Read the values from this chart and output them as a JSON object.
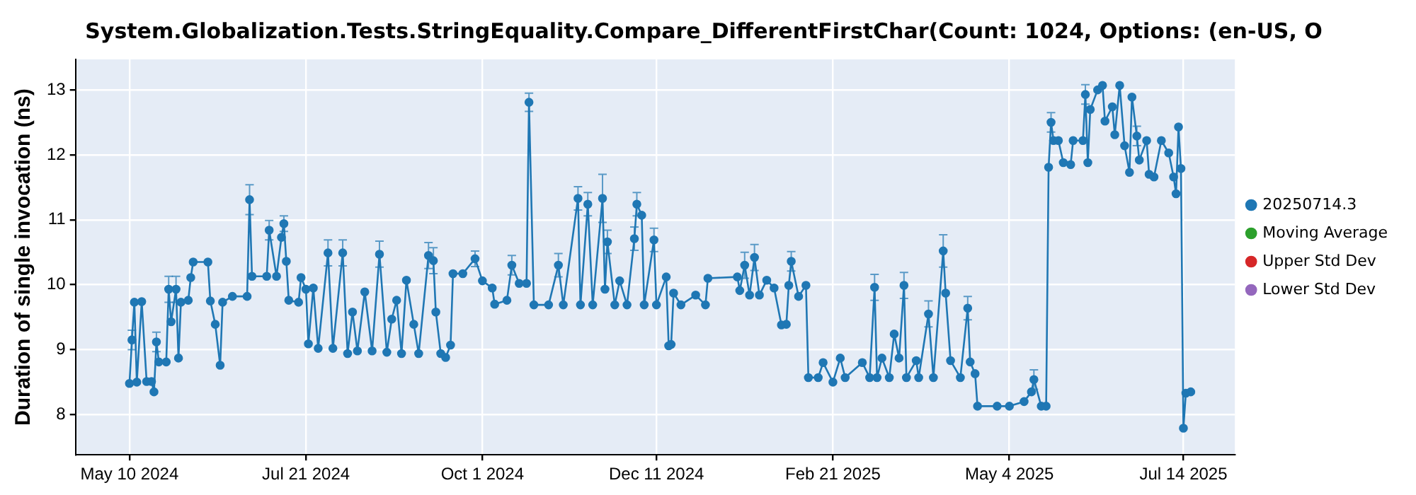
{
  "chart_data": {
    "type": "line",
    "title": "System.Globalization.Tests.StringEquality.Compare_DifferentFirstChar(Count: 1024, Options: (en-US, O",
    "ylabel": "Duration of single invocation (ns)",
    "x": [
      "2024-05-10",
      "2024-05-11",
      "2024-05-12",
      "2024-05-13",
      "2024-05-15",
      "2024-05-17",
      "2024-05-19",
      "2024-05-20",
      "2024-05-21",
      "2024-05-22",
      "2024-05-25",
      "2024-05-26",
      "2024-05-27",
      "2024-05-29",
      "2024-05-30",
      "2024-05-31",
      "2024-06-03",
      "2024-06-04",
      "2024-06-05",
      "2024-06-11",
      "2024-06-12",
      "2024-06-14",
      "2024-06-16",
      "2024-06-17",
      "2024-06-21",
      "2024-06-27",
      "2024-06-28",
      "2024-06-29",
      "2024-07-05",
      "2024-07-06",
      "2024-07-09",
      "2024-07-11",
      "2024-07-12",
      "2024-07-13",
      "2024-07-14",
      "2024-07-18",
      "2024-07-19",
      "2024-07-21",
      "2024-07-22",
      "2024-07-24",
      "2024-07-26",
      "2024-07-30",
      "2024-08-01",
      "2024-08-05",
      "2024-08-07",
      "2024-08-09",
      "2024-08-11",
      "2024-08-14",
      "2024-08-17",
      "2024-08-20",
      "2024-08-23",
      "2024-08-25",
      "2024-08-27",
      "2024-08-29",
      "2024-08-31",
      "2024-09-03",
      "2024-09-05",
      "2024-09-09",
      "2024-09-11",
      "2024-09-12",
      "2024-09-14",
      "2024-09-16",
      "2024-09-18",
      "2024-09-19",
      "2024-09-23",
      "2024-09-28",
      "2024-10-01",
      "2024-10-05",
      "2024-10-06",
      "2024-10-11",
      "2024-10-13",
      "2024-10-16",
      "2024-10-19",
      "2024-10-20",
      "2024-10-22",
      "2024-10-28",
      "2024-11-01",
      "2024-11-03",
      "2024-11-09",
      "2024-11-10",
      "2024-11-13",
      "2024-11-15",
      "2024-11-19",
      "2024-11-20",
      "2024-11-21",
      "2024-11-24",
      "2024-11-26",
      "2024-11-29",
      "2024-12-02",
      "2024-12-03",
      "2024-12-05",
      "2024-12-06",
      "2024-12-10",
      "2024-12-11",
      "2024-12-15",
      "2024-12-16",
      "2024-12-17",
      "2024-12-18",
      "2024-12-21",
      "2024-12-27",
      "2024-12-31",
      "2025-01-01",
      "2025-01-13",
      "2025-01-14",
      "2025-01-16",
      "2025-01-18",
      "2025-01-20",
      "2025-01-22",
      "2025-01-25",
      "2025-01-28",
      "2025-01-31",
      "2025-02-02",
      "2025-02-03",
      "2025-02-04",
      "2025-02-07",
      "2025-02-10",
      "2025-02-11",
      "2025-02-15",
      "2025-02-17",
      "2025-02-21",
      "2025-02-24",
      "2025-02-26",
      "2025-03-05",
      "2025-03-08",
      "2025-03-10",
      "2025-03-11",
      "2025-03-13",
      "2025-03-16",
      "2025-03-18",
      "2025-03-20",
      "2025-03-22",
      "2025-03-23",
      "2025-03-27",
      "2025-03-28",
      "2025-04-01",
      "2025-04-03",
      "2025-04-07",
      "2025-04-08",
      "2025-04-10",
      "2025-04-14",
      "2025-04-17",
      "2025-04-18",
      "2025-04-20",
      "2025-04-21",
      "2025-04-29",
      "2025-05-04",
      "2025-05-10",
      "2025-05-13",
      "2025-05-14",
      "2025-05-17",
      "2025-05-19",
      "2025-05-20",
      "2025-05-21",
      "2025-05-22",
      "2025-05-24",
      "2025-05-26",
      "2025-05-29",
      "2025-05-30",
      "2025-06-03",
      "2025-06-04",
      "2025-06-05",
      "2025-06-06",
      "2025-06-09",
      "2025-06-11",
      "2025-06-12",
      "2025-06-15",
      "2025-06-16",
      "2025-06-18",
      "2025-06-20",
      "2025-06-22",
      "2025-06-23",
      "2025-06-25",
      "2025-06-26",
      "2025-06-29",
      "2025-06-30",
      "2025-07-02",
      "2025-07-05",
      "2025-07-08",
      "2025-07-10",
      "2025-07-11",
      "2025-07-12",
      "2025-07-13",
      "2025-07-14",
      "2025-07-15",
      "2025-07-17"
    ],
    "series": [
      {
        "name": "20250714.3",
        "color": "#1f77b4",
        "values": [
          8.48,
          9.15,
          9.73,
          8.5,
          9.74,
          8.51,
          8.51,
          8.35,
          9.12,
          8.81,
          8.81,
          9.93,
          9.43,
          9.93,
          8.87,
          9.73,
          9.76,
          10.11,
          10.35,
          10.35,
          9.75,
          9.39,
          8.76,
          9.73,
          9.82,
          9.82,
          11.31,
          10.13,
          10.13,
          10.84,
          10.13,
          10.73,
          10.94,
          10.36,
          9.76,
          9.73,
          10.11,
          9.93,
          9.09,
          9.95,
          9.02,
          10.49,
          9.02,
          10.49,
          8.94,
          9.58,
          8.98,
          9.89,
          8.98,
          10.47,
          8.96,
          9.47,
          9.76,
          8.94,
          10.07,
          9.39,
          8.94,
          10.45,
          10.37,
          9.58,
          8.94,
          8.88,
          9.07,
          10.17,
          10.17,
          10.4,
          10.06,
          9.95,
          9.7,
          9.76,
          10.3,
          10.02,
          10.02,
          12.81,
          9.69,
          9.69,
          10.3,
          9.69,
          11.33,
          9.69,
          11.24,
          9.69,
          11.33,
          9.93,
          10.66,
          9.69,
          10.06,
          9.69,
          10.71,
          11.24,
          11.07,
          9.69,
          10.69,
          9.69,
          10.12,
          9.06,
          9.08,
          9.87,
          9.69,
          9.84,
          9.69,
          10.1,
          10.12,
          9.91,
          10.3,
          9.84,
          10.42,
          9.84,
          10.07,
          9.95,
          9.38,
          9.39,
          9.99,
          10.36,
          9.82,
          9.99,
          8.57,
          8.57,
          8.8,
          8.5,
          8.87,
          8.57,
          8.8,
          8.57,
          9.96,
          8.57,
          8.87,
          8.57,
          9.24,
          8.87,
          9.99,
          8.57,
          8.83,
          8.57,
          9.55,
          8.57,
          10.52,
          9.87,
          8.83,
          8.57,
          9.64,
          8.81,
          8.63,
          8.13,
          8.13,
          8.13,
          8.2,
          8.35,
          8.54,
          8.13,
          8.13,
          11.81,
          12.5,
          12.22,
          12.22,
          11.88,
          11.85,
          12.22,
          12.22,
          12.93,
          11.88,
          12.7,
          13.0,
          13.07,
          12.52,
          12.74,
          12.31,
          13.07,
          12.14,
          11.73,
          12.89,
          12.29,
          11.92,
          12.22,
          11.7,
          11.66,
          12.22,
          12.03,
          11.66,
          11.4,
          12.43,
          11.79,
          7.79,
          8.33,
          8.35
        ],
        "errors": [
          null,
          0.15,
          null,
          null,
          null,
          null,
          null,
          null,
          0.15,
          null,
          null,
          0.2,
          null,
          0.2,
          null,
          null,
          null,
          null,
          null,
          null,
          null,
          null,
          null,
          null,
          null,
          null,
          0.23,
          null,
          null,
          0.15,
          null,
          null,
          0.12,
          null,
          null,
          null,
          null,
          null,
          null,
          null,
          null,
          0.2,
          null,
          0.2,
          null,
          null,
          null,
          null,
          null,
          0.2,
          null,
          null,
          null,
          null,
          null,
          null,
          null,
          0.2,
          0.2,
          null,
          null,
          null,
          null,
          null,
          null,
          0.12,
          null,
          null,
          null,
          null,
          0.15,
          null,
          null,
          0.14,
          null,
          null,
          0.18,
          null,
          0.18,
          null,
          0.18,
          null,
          0.37,
          null,
          0.18,
          null,
          null,
          null,
          0.18,
          0.18,
          null,
          null,
          0.18,
          null,
          null,
          null,
          null,
          null,
          null,
          null,
          null,
          null,
          null,
          null,
          0.2,
          null,
          0.2,
          null,
          null,
          null,
          null,
          null,
          null,
          0.15,
          null,
          null,
          null,
          null,
          null,
          null,
          null,
          null,
          null,
          null,
          0.2,
          null,
          null,
          null,
          null,
          null,
          0.2,
          null,
          null,
          null,
          0.2,
          null,
          0.25,
          null,
          null,
          null,
          0.18,
          null,
          null,
          null,
          null,
          null,
          null,
          null,
          0.15,
          null,
          null,
          null,
          0.15,
          null,
          null,
          null,
          null,
          null,
          null,
          0.15,
          null,
          null,
          null,
          null,
          null,
          null,
          null,
          null,
          null,
          null,
          null,
          0.15,
          null,
          null,
          null,
          null,
          null,
          null,
          null,
          null,
          null,
          null,
          null,
          null,
          null
        ]
      },
      {
        "name": "Moving Average",
        "color": "#2ca02c",
        "values": [
          null,
          null,
          null,
          null,
          null,
          null,
          null,
          null,
          null,
          null,
          null,
          null,
          null,
          null,
          null,
          null,
          null,
          null,
          null,
          null,
          null,
          null,
          null,
          null,
          null,
          null,
          null,
          null,
          null,
          null,
          null,
          null,
          null,
          null,
          null,
          null,
          null,
          null,
          null,
          null,
          null,
          null,
          null,
          null,
          null,
          null,
          null,
          null,
          null,
          null,
          null,
          null,
          null,
          null,
          null,
          null,
          null,
          null,
          null,
          null,
          null,
          null,
          null,
          null,
          null,
          null,
          null,
          null,
          null,
          null,
          null,
          null,
          null,
          null,
          null,
          null,
          null,
          null,
          null,
          null,
          null,
          null,
          null,
          null,
          null,
          null,
          null,
          null,
          null,
          null,
          null,
          null,
          null,
          null,
          null,
          null,
          null,
          null,
          null,
          null,
          null,
          null,
          null,
          null,
          null,
          null,
          null,
          null,
          null,
          null,
          null,
          null,
          null,
          null,
          null,
          null,
          null,
          null,
          null,
          null,
          null,
          null,
          null,
          null,
          null,
          null,
          null,
          null,
          null,
          null,
          null,
          null,
          null,
          null,
          null,
          null,
          null,
          null,
          null,
          null,
          null,
          null,
          null,
          null,
          null,
          null,
          null,
          null,
          null,
          null,
          null,
          null,
          null,
          null,
          null,
          null,
          null,
          null,
          null,
          null,
          null,
          null,
          null,
          null,
          null,
          null,
          null,
          null,
          null,
          null,
          null,
          null,
          null,
          null,
          null,
          null,
          null,
          null,
          null,
          null,
          null,
          null,
          null,
          null,
          null
        ]
      },
      {
        "name": "Upper Std Dev",
        "color": "#d62728",
        "values": [
          null,
          null,
          null,
          null,
          null,
          null,
          null,
          null,
          null,
          null,
          null,
          null,
          null,
          null,
          null,
          null,
          null,
          null,
          null,
          null,
          null,
          null,
          null,
          null,
          null,
          null,
          null,
          null,
          null,
          null,
          null,
          null,
          null,
          null,
          null,
          null,
          null,
          null,
          null,
          null,
          null,
          null,
          null,
          null,
          null,
          null,
          null,
          null,
          null,
          null,
          null,
          null,
          null,
          null,
          null,
          null,
          null,
          null,
          null,
          null,
          null,
          null,
          null,
          null,
          null,
          null,
          null,
          null,
          null,
          null,
          null,
          null,
          null,
          null,
          null,
          null,
          null,
          null,
          null,
          null,
          null,
          null,
          null,
          null,
          null,
          null,
          null,
          null,
          null,
          null,
          null,
          null,
          null,
          null,
          null,
          null,
          null,
          null,
          null,
          null,
          null,
          null,
          null,
          null,
          null,
          null,
          null,
          null,
          null,
          null,
          null,
          null,
          null,
          null,
          null,
          null,
          null,
          null,
          null,
          null,
          null,
          null,
          null,
          null,
          null,
          null,
          null,
          null,
          null,
          null,
          null,
          null,
          null,
          null,
          null,
          null,
          null,
          null,
          null,
          null,
          null,
          null,
          null,
          null,
          null,
          null,
          null,
          null,
          null,
          null,
          null,
          null,
          null,
          null,
          null,
          null,
          null,
          null,
          null,
          null,
          null,
          null,
          null,
          null,
          null,
          null,
          null,
          null,
          null,
          null,
          null,
          null,
          null,
          null,
          null,
          null,
          null,
          null,
          null,
          null,
          null,
          null,
          null,
          null,
          null
        ]
      },
      {
        "name": "Lower Std Dev",
        "color": "#9467bd",
        "values": [
          null,
          null,
          null,
          null,
          null,
          null,
          null,
          null,
          null,
          null,
          null,
          null,
          null,
          null,
          null,
          null,
          null,
          null,
          null,
          null,
          null,
          null,
          null,
          null,
          null,
          null,
          null,
          null,
          null,
          null,
          null,
          null,
          null,
          null,
          null,
          null,
          null,
          null,
          null,
          null,
          null,
          null,
          null,
          null,
          null,
          null,
          null,
          null,
          null,
          null,
          null,
          null,
          null,
          null,
          null,
          null,
          null,
          null,
          null,
          null,
          null,
          null,
          null,
          null,
          null,
          null,
          null,
          null,
          null,
          null,
          null,
          null,
          null,
          null,
          null,
          null,
          null,
          null,
          null,
          null,
          null,
          null,
          null,
          null,
          null,
          null,
          null,
          null,
          null,
          null,
          null,
          null,
          null,
          null,
          null,
          null,
          null,
          null,
          null,
          null,
          null,
          null,
          null,
          null,
          null,
          null,
          null,
          null,
          null,
          null,
          null,
          null,
          null,
          null,
          null,
          null,
          null,
          null,
          null,
          null,
          null,
          null,
          null,
          null,
          null,
          null,
          null,
          null,
          null,
          null,
          null,
          null,
          null,
          null,
          null,
          null,
          null,
          null,
          null,
          null,
          null,
          null,
          null,
          null,
          null,
          null,
          null,
          null,
          null,
          null,
          null,
          null,
          null,
          null,
          null,
          null,
          null,
          null,
          null,
          null,
          null,
          null,
          null,
          null,
          null,
          null,
          null,
          null,
          null,
          null,
          null,
          null,
          null,
          null,
          null,
          null,
          null,
          null,
          null,
          null,
          null,
          null,
          null,
          null,
          null
        ]
      }
    ],
    "xlim": [
      "2024-04-18",
      "2025-08-04"
    ],
    "xticks": [
      {
        "value": "2024-05-10",
        "label": "May 10 2024"
      },
      {
        "value": "2024-07-21",
        "label": "Jul 21 2024"
      },
      {
        "value": "2024-10-01",
        "label": "Oct 1 2024"
      },
      {
        "value": "2024-12-11",
        "label": "Dec 11 2024"
      },
      {
        "value": "2025-02-21",
        "label": "Feb 21 2025"
      },
      {
        "value": "2025-05-04",
        "label": "May 4 2025"
      },
      {
        "value": "2025-07-14",
        "label": "Jul 14 2025"
      }
    ],
    "ylim": [
      7.38,
      13.47
    ],
    "yticks": [
      8,
      9,
      10,
      11,
      12,
      13
    ],
    "grid": true,
    "legend": "right",
    "marker": "circle",
    "line_style": "solid"
  }
}
